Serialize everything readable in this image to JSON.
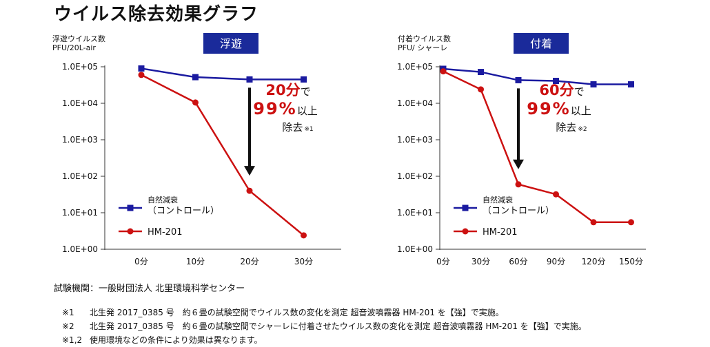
{
  "title": "ウイルス除去効果グラフ",
  "accent_colors": {
    "control": "#1a1aa0",
    "device": "#cc1111",
    "badge": "#1a2a9a"
  },
  "chart_data": [
    {
      "type": "line",
      "badge": "浮遊",
      "ylabel_lines": [
        "浮遊ウイルス数",
        "PFU/20L-air"
      ],
      "y_scale": "log",
      "ylim": [
        1,
        100000
      ],
      "yticks": [
        1,
        10,
        100,
        1000,
        10000,
        100000
      ],
      "ytick_labels": [
        "1.0E+00",
        "1.0E+01",
        "1.0E+02",
        "1.0E+03",
        "1.0E+04",
        "1.0E+05"
      ],
      "categories": [
        "0分",
        "10分",
        "20分",
        "30分"
      ],
      "series": [
        {
          "name": "自然減衰（コントロール）",
          "legend_lines": [
            "自然減衰",
            "（コントロール）"
          ],
          "color": "#1a1aa0",
          "marker": "square",
          "values": [
            90000,
            52000,
            45000,
            45000
          ]
        },
        {
          "name": "HM-201",
          "legend_lines": [
            "HM-201"
          ],
          "color": "#cc1111",
          "marker": "circle",
          "values": [
            60000,
            10500,
            40,
            2.4
          ]
        }
      ],
      "legend_position": "bottom-left",
      "annotation": {
        "from_category": 2,
        "line1_value": "20分",
        "line1_suffix": "で",
        "line2_value": "99%",
        "line2_suffix": "以上",
        "line3": "除去",
        "note": "※1"
      }
    },
    {
      "type": "line",
      "badge": "付着",
      "ylabel_lines": [
        "付着ウイルス数",
        "PFU/ シャーレ"
      ],
      "y_scale": "log",
      "ylim": [
        1,
        100000
      ],
      "yticks": [
        1,
        10,
        100,
        1000,
        10000,
        100000
      ],
      "ytick_labels": [
        "1.0E+00",
        "1.0E+01",
        "1.0E+02",
        "1.0E+03",
        "1.0E+04",
        "1.0E+05"
      ],
      "categories": [
        "0分",
        "30分",
        "60分",
        "90分",
        "120分",
        "150分"
      ],
      "series": [
        {
          "name": "自然減衰（コントロール）",
          "legend_lines": [
            "自然減衰",
            "（コントロール）"
          ],
          "color": "#1a1aa0",
          "marker": "square",
          "values": [
            88000,
            72000,
            43000,
            41000,
            33000,
            33000
          ]
        },
        {
          "name": "HM-201",
          "legend_lines": [
            "HM-201"
          ],
          "color": "#cc1111",
          "marker": "circle",
          "values": [
            75000,
            24000,
            60,
            32,
            5.5,
            5.5
          ]
        }
      ],
      "legend_position": "bottom-left",
      "annotation": {
        "from_category": 2,
        "line1_value": "60分",
        "line1_suffix": "で",
        "line2_value": "99%",
        "line2_suffix": "以上",
        "line3": "除去",
        "note": "※2"
      }
    }
  ],
  "footer": {
    "institution": "試験機関：一般財団法人 北里環境科学センター",
    "notes": [
      {
        "mark": "※1",
        "text": "北生発 2017_0385 号　約６畳の試験空間でウイルス数の変化を測定 超音波噴霧器 HM-201 を【強】で実施。"
      },
      {
        "mark": "※2",
        "text": "北生発 2017_0385 号　約６畳の試験空間でシャーレに付着させたウイルス数の変化を測定 超音波噴霧器 HM-201 を【強】で実施。"
      },
      {
        "mark": "※1,2",
        "text": "使用環境などの条件により効果は異なります。"
      }
    ]
  }
}
